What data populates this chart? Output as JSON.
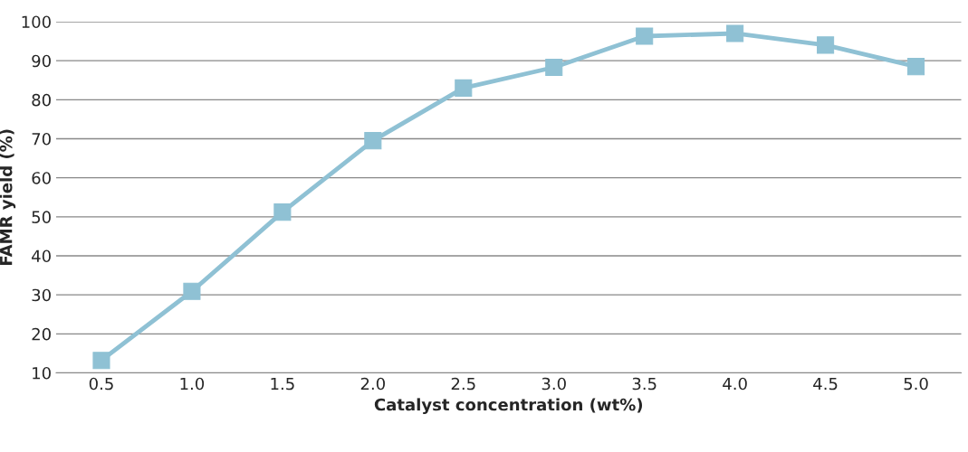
{
  "chart_data": {
    "type": "line",
    "xlabel": "Catalyst concentration (wt%)",
    "ylabel": "FAMR yield (%)",
    "categories": [
      "0.5",
      "1.0",
      "1.5",
      "2.0",
      "2.5",
      "3.0",
      "3.5",
      "4.0",
      "4.5",
      "5.0"
    ],
    "series": [
      {
        "color": "#8fc1d4",
        "values": [
          13.2,
          30.9,
          51.2,
          69.5,
          83.0,
          88.3,
          96.3,
          97.0,
          94.0,
          88.5
        ]
      }
    ],
    "ylim": [
      10,
      100
    ],
    "yticks": [
      10,
      20,
      30,
      40,
      50,
      60,
      70,
      80,
      90,
      100
    ],
    "grid": "y",
    "marker": "square",
    "line_style": "solid",
    "legend": false
  }
}
